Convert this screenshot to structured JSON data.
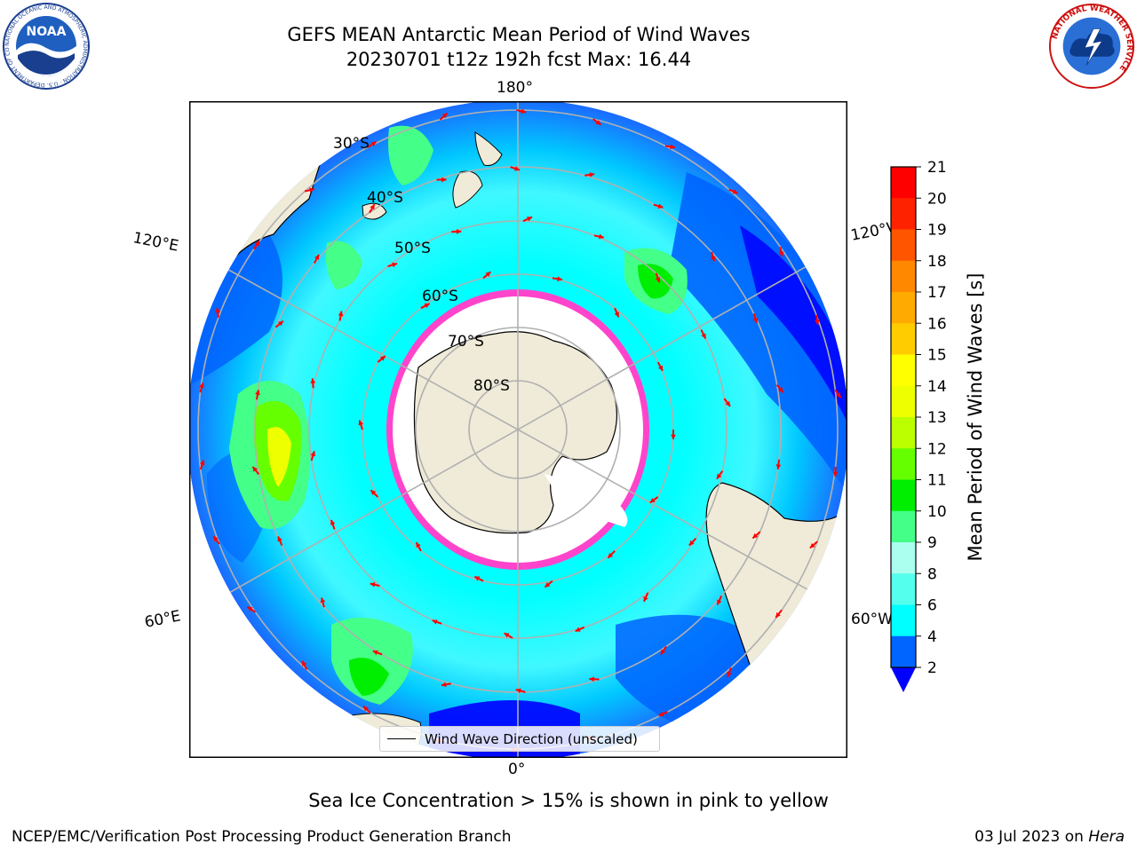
{
  "header": {
    "title_line1": "GEFS MEAN Antarctic Mean Period of Wind Waves",
    "title_line2": "20230701 t12z 192h fcst   Max: 16.44"
  },
  "logos": {
    "noaa_text": "NOAA",
    "noaa_ring": "NATIONAL OCEANIC AND ATMOSPHERIC ADMINISTRATION · U.S. DEPARTMENT OF COMMERCE",
    "nws_ring": "NATIONAL WEATHER SERVICE"
  },
  "map": {
    "projection": "south-polar-stereographic",
    "lon_labels": {
      "top": "180°",
      "bottom": "0°",
      "left_upper": "120°E",
      "right_upper": "120°W",
      "left_lower": "60°E",
      "right_lower": "60°W"
    },
    "lat_labels": [
      "30°S",
      "40°S",
      "50°S",
      "60°S",
      "70°S",
      "80°S"
    ],
    "legend_label": "Wind Wave Direction (unscaled)",
    "colors": {
      "ocean_ramp": [
        "#0000ff",
        "#0064ff",
        "#00c8ff",
        "#00ffff",
        "#55ffee",
        "#aaffee",
        "#44ff88",
        "#00ee00",
        "#66ff00",
        "#bbff00",
        "#eeff00",
        "#ffff00",
        "#ffcc00",
        "#ffaa00",
        "#ff8800",
        "#ff5500",
        "#ff2200",
        "#ff0000"
      ],
      "land": "#efebd8",
      "sea_ice_edge": "#ff44cc",
      "arrows": "#ff0000",
      "graticule": "#b0b0b0"
    }
  },
  "colorbar": {
    "label": "Mean Period of Wind Waves [s]",
    "ticks": [
      "21",
      "20",
      "19",
      "18",
      "17",
      "16",
      "15",
      "14",
      "13",
      "12",
      "11",
      "10",
      "9",
      "8",
      "6",
      "4",
      "2"
    ],
    "tick_values": [
      21,
      20,
      19,
      18,
      17,
      16,
      15,
      14,
      13,
      12,
      11,
      10,
      9,
      8,
      6,
      4,
      2
    ],
    "colors_top_to_bottom": [
      "#ff0000",
      "#ff2200",
      "#ff5500",
      "#ff8800",
      "#ffaa00",
      "#ffcc00",
      "#ffff00",
      "#eeff00",
      "#bbff00",
      "#66ff00",
      "#00ee00",
      "#44ff88",
      "#aaffee",
      "#55ffee",
      "#00ffff",
      "#0064ff"
    ],
    "under_color": "#0000ff"
  },
  "subtitle": "Sea Ice Concentration > 15% is shown in pink to yellow",
  "footer": {
    "left": "NCEP/EMC/Verification Post Processing Product Generation Branch",
    "date": "03 Jul 2023 on ",
    "machine": "Hera"
  }
}
